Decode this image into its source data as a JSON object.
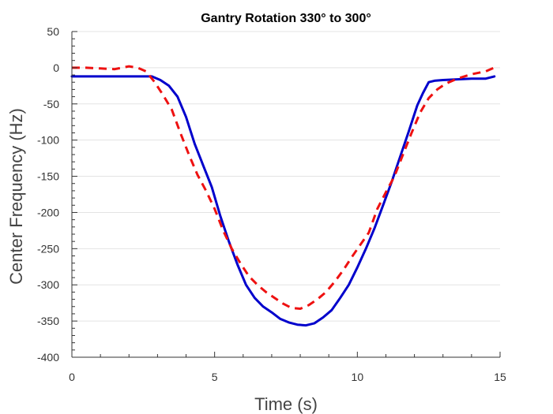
{
  "chart_data": {
    "type": "line",
    "title": "Gantry Rotation 330° to 300°",
    "xlabel": "Time (s)",
    "ylabel": "Center Frequency (Hz)",
    "xlim": [
      0,
      15
    ],
    "ylim": [
      -400,
      50
    ],
    "xticks": [
      0,
      5,
      10,
      15
    ],
    "yticks": [
      50,
      0,
      -50,
      -100,
      -150,
      -200,
      -250,
      -300,
      -350,
      -400
    ],
    "grid": "horizontal",
    "series": [
      {
        "color": "#0000cc",
        "style": "solid",
        "x": [
          0,
          1,
          2,
          2.8,
          3.1,
          3.4,
          3.7,
          4.0,
          4.3,
          4.6,
          4.9,
          5.2,
          5.5,
          5.8,
          6.1,
          6.4,
          6.7,
          7.0,
          7.3,
          7.6,
          7.9,
          8.2,
          8.5,
          8.8,
          9.1,
          9.4,
          9.7,
          10.0,
          10.3,
          10.6,
          10.9,
          11.2,
          11.5,
          11.8,
          12.1,
          12.3,
          12.5,
          12.7,
          13.0,
          13.5,
          14.0,
          14.5,
          14.8
        ],
        "y": [
          -12,
          -12,
          -12,
          -12,
          -17,
          -25,
          -40,
          -68,
          -105,
          -135,
          -165,
          -205,
          -240,
          -272,
          -300,
          -318,
          -330,
          -338,
          -347,
          -352,
          -355,
          -356,
          -353,
          -345,
          -335,
          -318,
          -300,
          -276,
          -250,
          -222,
          -190,
          -158,
          -123,
          -88,
          -52,
          -35,
          -20,
          -18,
          -17,
          -16,
          -15,
          -15,
          -12
        ]
      },
      {
        "color": "#ee1111",
        "style": "dashed",
        "x": [
          0,
          0.5,
          1.0,
          1.5,
          2.0,
          2.3,
          2.6,
          2.9,
          3.2,
          3.5,
          3.8,
          4.1,
          4.4,
          4.7,
          5.0,
          5.3,
          5.6,
          5.9,
          6.2,
          6.5,
          6.8,
          7.1,
          7.4,
          7.7,
          8.0,
          8.3,
          8.6,
          8.9,
          9.2,
          9.5,
          9.8,
          10.1,
          10.4,
          10.7,
          11.0,
          11.3,
          11.6,
          11.9,
          12.2,
          12.5,
          12.8,
          13.1,
          13.5,
          14.0,
          14.5,
          14.9
        ],
        "y": [
          0,
          0,
          -1,
          -2,
          2,
          0,
          -5,
          -20,
          -38,
          -58,
          -90,
          -120,
          -148,
          -170,
          -195,
          -225,
          -250,
          -270,
          -288,
          -300,
          -310,
          -318,
          -326,
          -332,
          -333,
          -328,
          -320,
          -310,
          -296,
          -280,
          -262,
          -245,
          -228,
          -195,
          -172,
          -150,
          -120,
          -90,
          -62,
          -42,
          -30,
          -22,
          -15,
          -9,
          -5,
          2
        ]
      }
    ]
  }
}
